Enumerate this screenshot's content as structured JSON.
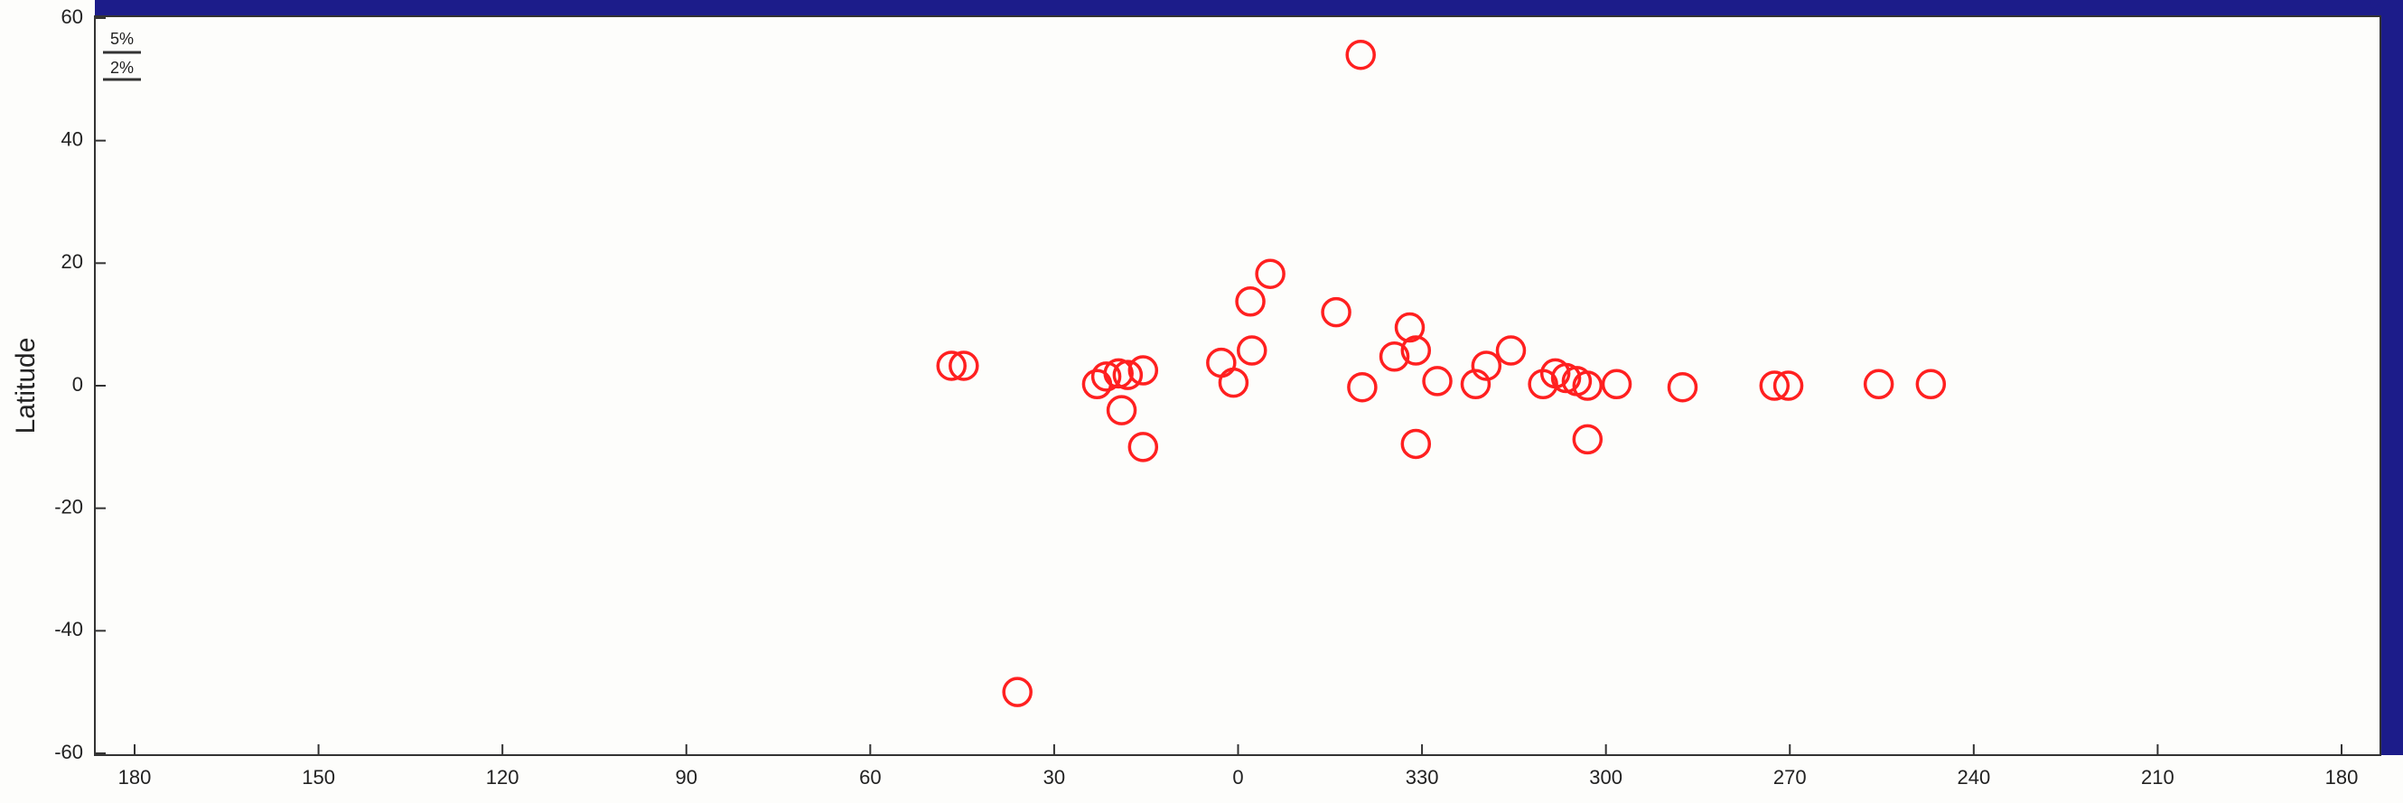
{
  "chart_data": {
    "type": "scatter",
    "ylabel": "Latitude",
    "annotations": [
      "5%",
      "2%"
    ],
    "color": "#ff2020",
    "x": [
      -20,
      36,
      46.75,
      44.75,
      23,
      21.5,
      19.5,
      18,
      19,
      15.5,
      15.5,
      2.75,
      0.75,
      -2,
      -2.25,
      -5.25,
      -16,
      -20.25,
      -25.5,
      -28,
      -29,
      -29,
      -32.5,
      -38.75,
      -40.5,
      -44.5,
      -49.75,
      -51.75,
      -53.5,
      -55.25,
      -57,
      -57,
      -61.75,
      -72.5,
      -87.5,
      -89.75,
      -104.5,
      -113
    ],
    "y": [
      54,
      -50,
      3.25,
      3.25,
      0.25,
      1.5,
      2,
      1.75,
      -4,
      2.5,
      -10,
      3.75,
      0.5,
      13.75,
      5.75,
      18.25,
      12,
      -0.25,
      4.75,
      9.5,
      5.75,
      -9.5,
      0.75,
      0.25,
      3.25,
      5.75,
      0.25,
      2,
      1.25,
      0.75,
      0,
      -8.75,
      0.25,
      -0.25,
      0,
      0,
      0.25,
      0.25
    ],
    "xlim": [
      180,
      -180
    ],
    "ylim": [
      -60,
      60
    ],
    "xticks": [
      180,
      150,
      120,
      90,
      60,
      30,
      0,
      {
        "value": -30,
        "label": "330"
      },
      {
        "value": -60,
        "label": "300"
      },
      {
        "value": -90,
        "label": "270"
      },
      {
        "value": -120,
        "label": "240"
      },
      {
        "value": -150,
        "label": "210"
      },
      {
        "value": -180,
        "label": "180"
      }
    ],
    "yticks": [
      -60,
      -40,
      -20,
      0,
      20,
      40,
      60
    ]
  }
}
